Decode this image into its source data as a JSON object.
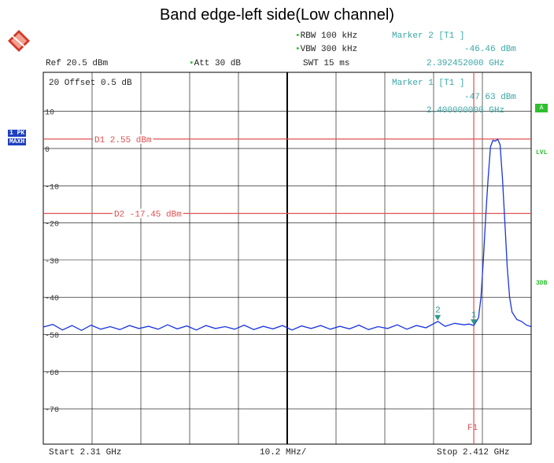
{
  "title": "Band edge-left side(Low channel)",
  "header": {
    "ref": "Ref  20.5 dBm",
    "att": "Att  30 dB",
    "rbw": "RBW 100 kHz",
    "vbw": "VBW 300 kHz",
    "swt": "SWT 15 ms",
    "offset": "20  Offset  0.5 dB"
  },
  "markers": {
    "m2_title": "Marker 2 [T1 ]",
    "m2_level": "-46.46 dBm",
    "m2_freq": "2.392452000 GHz",
    "m1_title": "Marker 1 [T1 ]",
    "m1_level": "-47.63 dBm",
    "m1_freq": "2.400000000 GHz"
  },
  "badges": {
    "trace1": "1 PK",
    "trace1_mode": "MAXH",
    "a": "A",
    "lvl": "LVL",
    "db3": "3DB"
  },
  "footer": {
    "start": "Start 2.31 GHz",
    "span": "10.2 MHz/",
    "stop": "Stop 2.412 GHz"
  },
  "colors": {
    "trace": "#1a35e0",
    "lines": "#e05050",
    "teal": "#3aa6a6",
    "green": "#2fbf2f"
  },
  "chart_data": {
    "type": "line",
    "xlim": [
      2.31,
      2.412
    ],
    "ylim": [
      -79.5,
      20.5
    ],
    "y_ticks": [
      10,
      0,
      -10,
      -20,
      -30,
      -40,
      -50,
      -60,
      -70
    ],
    "grid": true,
    "display_lines": [
      {
        "label": "D1 2.55 dBm",
        "value": 2.55
      },
      {
        "label": "D2 -17.45 dBm",
        "value": -17.45
      }
    ],
    "frequency_line": {
      "label": "F1",
      "value": 2.4
    },
    "marker_points": [
      {
        "label": "1",
        "x": 2.4,
        "y": -47.63
      },
      {
        "label": "2",
        "x": 2.392452,
        "y": -46.46
      }
    ],
    "series": [
      {
        "points": [
          [
            2.31,
            -48.0
          ],
          [
            2.312,
            -47.3
          ],
          [
            2.314,
            -48.8
          ],
          [
            2.316,
            -47.6
          ],
          [
            2.318,
            -48.9
          ],
          [
            2.32,
            -47.5
          ],
          [
            2.322,
            -48.6
          ],
          [
            2.324,
            -47.9
          ],
          [
            2.326,
            -48.7
          ],
          [
            2.328,
            -47.6
          ],
          [
            2.33,
            -48.4
          ],
          [
            2.332,
            -47.8
          ],
          [
            2.334,
            -48.6
          ],
          [
            2.336,
            -47.4
          ],
          [
            2.338,
            -48.5
          ],
          [
            2.34,
            -47.7
          ],
          [
            2.342,
            -48.8
          ],
          [
            2.344,
            -47.6
          ],
          [
            2.346,
            -48.4
          ],
          [
            2.348,
            -47.9
          ],
          [
            2.35,
            -48.6
          ],
          [
            2.352,
            -47.5
          ],
          [
            2.354,
            -48.7
          ],
          [
            2.356,
            -47.8
          ],
          [
            2.358,
            -48.5
          ],
          [
            2.36,
            -47.6
          ],
          [
            2.362,
            -48.8
          ],
          [
            2.364,
            -47.7
          ],
          [
            2.366,
            -48.4
          ],
          [
            2.368,
            -47.6
          ],
          [
            2.37,
            -48.6
          ],
          [
            2.372,
            -47.8
          ],
          [
            2.374,
            -48.5
          ],
          [
            2.376,
            -47.5
          ],
          [
            2.378,
            -48.7
          ],
          [
            2.38,
            -47.9
          ],
          [
            2.382,
            -48.4
          ],
          [
            2.384,
            -47.4
          ],
          [
            2.386,
            -48.6
          ],
          [
            2.388,
            -47.6
          ],
          [
            2.39,
            -48.2
          ],
          [
            2.3925,
            -46.5
          ],
          [
            2.394,
            -47.8
          ],
          [
            2.396,
            -47.0
          ],
          [
            2.398,
            -47.4
          ],
          [
            2.399,
            -47.2
          ],
          [
            2.4,
            -47.6
          ],
          [
            2.401,
            -45.5
          ],
          [
            2.4015,
            -40.0
          ],
          [
            2.402,
            -30.0
          ],
          [
            2.4025,
            -18.0
          ],
          [
            2.403,
            -8.0
          ],
          [
            2.4035,
            0.5
          ],
          [
            2.404,
            2.2
          ],
          [
            2.4045,
            2.0
          ],
          [
            2.405,
            2.5
          ],
          [
            2.4055,
            1.0
          ],
          [
            2.406,
            -8.0
          ],
          [
            2.4065,
            -20.0
          ],
          [
            2.407,
            -32.0
          ],
          [
            2.4075,
            -40.0
          ],
          [
            2.408,
            -44.0
          ],
          [
            2.409,
            -46.0
          ],
          [
            2.41,
            -46.5
          ],
          [
            2.411,
            -47.5
          ],
          [
            2.412,
            -47.9
          ]
        ]
      }
    ]
  }
}
